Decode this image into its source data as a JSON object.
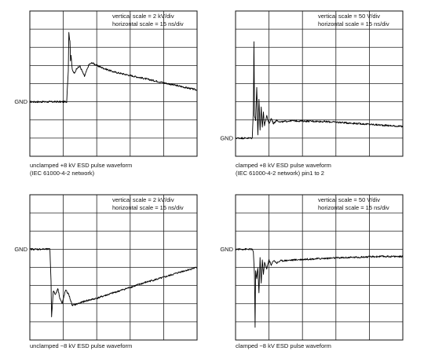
{
  "panels": [
    {
      "id": "p1",
      "vertical_scale": "vertical scale = 2 kV/div",
      "horizontal_scale": "horizontal scale = 15 ns/div",
      "gnd_label": "GND",
      "caption_line1": "unclamped +8 kV ESD pulse waveform",
      "caption_line2": "(IEC 61000-4-2 network)"
    },
    {
      "id": "p2",
      "vertical_scale": "vertical scale = 50 V/div",
      "horizontal_scale": "horizontal scale = 15 ns/div",
      "gnd_label": "GND",
      "caption_line1": "clamped +8 kV ESD pulse waveform",
      "caption_line2": "(IEC 61000-4-2 network) pin1 to 2"
    },
    {
      "id": "p3",
      "vertical_scale": "vertical scale = 2 kV/div",
      "horizontal_scale": "horizontal scale = 15 ns/div",
      "gnd_label": "GND",
      "caption_line1": "unclamped −8 kV ESD pulse waveform",
      "caption_line2": ""
    },
    {
      "id": "p4",
      "vertical_scale": "vertical scale = 50 V/div",
      "horizontal_scale": "horizontal scale = 15 ns/div",
      "gnd_label": "GND",
      "caption_line1": "clamped −8 kV ESD pulse waveform",
      "caption_line2": ""
    }
  ],
  "chart_data": [
    {
      "type": "line",
      "title": "",
      "x_unit": "ns",
      "y_unit": "kV",
      "xlim": [
        0,
        150
      ],
      "ylim": [
        -6,
        10
      ],
      "grid": true,
      "grid_divisions": {
        "x": 10,
        "y": 8
      },
      "series": [
        {
          "x": [
            0,
            33,
            34.5,
            35,
            36,
            36.5,
            37,
            38,
            40,
            42,
            45,
            49,
            53,
            56,
            60,
            66,
            75,
            90,
            105,
            120,
            135,
            150
          ],
          "y": [
            0,
            0,
            3.5,
            7.6,
            6.6,
            4.6,
            5.2,
            3.5,
            3.1,
            3.7,
            3.9,
            2.8,
            4.1,
            4.3,
            4.0,
            3.7,
            3.3,
            2.9,
            2.5,
            2.1,
            1.7,
            1.3
          ]
        }
      ]
    },
    {
      "type": "line",
      "title": "",
      "x_unit": "ns",
      "y_unit": "V",
      "xlim": [
        0,
        150
      ],
      "ylim": [
        -50,
        350
      ],
      "grid": true,
      "grid_divisions": {
        "x": 10,
        "y": 8
      },
      "series": [
        {
          "x": [
            0,
            15,
            16,
            16.5,
            17,
            18,
            19,
            20,
            21,
            22,
            23,
            24,
            25,
            26,
            28,
            30,
            32,
            34,
            37,
            40,
            50,
            60,
            75,
            90,
            110,
            130,
            150
          ],
          "y": [
            0,
            0,
            80,
            265,
            60,
            50,
            140,
            10,
            105,
            20,
            85,
            30,
            70,
            35,
            62,
            38,
            55,
            40,
            50,
            44,
            48,
            47,
            46,
            44,
            40,
            36,
            32
          ]
        }
      ]
    },
    {
      "type": "line",
      "title": "",
      "x_unit": "ns",
      "y_unit": "kV",
      "xlim": [
        0,
        150
      ],
      "ylim": [
        -10,
        6
      ],
      "grid": true,
      "grid_divisions": {
        "x": 10,
        "y": 8
      },
      "series": [
        {
          "x": [
            0,
            18,
            19,
            19.5,
            20,
            21,
            22,
            23,
            25,
            27,
            29,
            32,
            35,
            38,
            43,
            50,
            60,
            75,
            90,
            105,
            120,
            135,
            150
          ],
          "y": [
            0,
            0,
            -3.5,
            -7.5,
            -6.5,
            -4.6,
            -4.8,
            -5.0,
            -4.3,
            -5.4,
            -6.0,
            -4.5,
            -5.0,
            -6.2,
            -6.0,
            -5.7,
            -5.4,
            -4.8,
            -4.2,
            -3.6,
            -3.1,
            -2.5,
            -2.0
          ]
        }
      ]
    },
    {
      "type": "line",
      "title": "",
      "x_unit": "ns",
      "y_unit": "V",
      "xlim": [
        0,
        150
      ],
      "ylim": [
        -250,
        150
      ],
      "grid": true,
      "grid_divisions": {
        "x": 10,
        "y": 8
      },
      "series": [
        {
          "x": [
            0,
            15,
            16,
            17,
            17.5,
            18,
            19,
            20,
            21,
            22,
            23,
            24,
            25,
            26,
            28,
            30,
            32,
            34,
            37,
            40,
            50,
            60,
            75,
            90,
            110,
            130,
            150
          ],
          "y": [
            0,
            0,
            -10,
            -70,
            -215,
            -60,
            -80,
            -50,
            -120,
            -25,
            -95,
            -30,
            -70,
            -35,
            -55,
            -28,
            -45,
            -30,
            -38,
            -32,
            -30,
            -28,
            -26,
            -24,
            -22,
            -20,
            -20
          ]
        }
      ]
    }
  ]
}
